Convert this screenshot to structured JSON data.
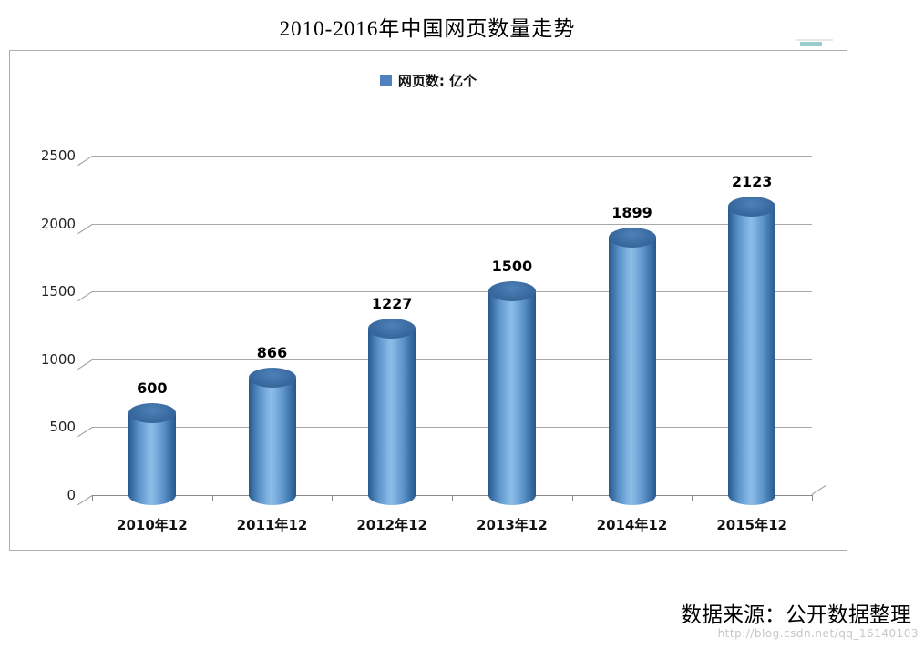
{
  "title": "2010-2016年中国网页数量走势",
  "legend": {
    "label": "网页数: 亿个",
    "color": "#4f81bd"
  },
  "source_note": "数据来源：公开数据整理",
  "watermark": "http://blog.csdn.net/qq_16140103",
  "chart_data": {
    "type": "bar",
    "shape": "cylinder",
    "title": "2010-2016年中国网页数量走势",
    "categories": [
      "2010年12",
      "2011年12",
      "2012年12",
      "2013年12",
      "2014年12",
      "2015年12"
    ],
    "series": [
      {
        "name": "网页数: 亿个",
        "values": [
          600,
          866,
          1227,
          1500,
          1899,
          2123
        ]
      }
    ],
    "data_labels": true,
    "bar_color": "#4f81bd",
    "xlabel": "",
    "ylabel": "",
    "ylim": [
      0,
      2500
    ],
    "yticks": [
      0,
      500,
      1000,
      1500,
      2000,
      2500
    ],
    "grid": true,
    "legend_position": "top"
  }
}
